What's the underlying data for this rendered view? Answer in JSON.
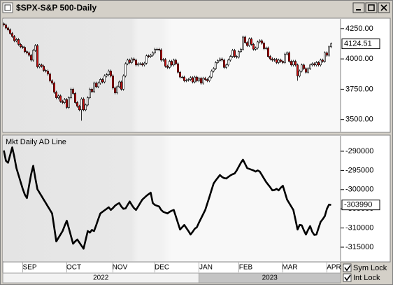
{
  "chart_data": [
    {
      "type": "candlestick",
      "title": "$SPX-S&P 500-Daily",
      "up_color": "#ffffff",
      "down_color": "#cc1111",
      "grid": false,
      "xlim": [
        -0.5,
        160.5
      ],
      "ylim": [
        3400,
        4330
      ],
      "yticks": [
        {
          "value": 4250,
          "label": "4250.00"
        },
        {
          "value": 4000,
          "label": "4000.00"
        },
        {
          "value": 3750,
          "label": "3750.00"
        },
        {
          "value": 3500,
          "label": "3500.00"
        }
      ],
      "open": [
        4290,
        4280,
        4255,
        4240,
        4210,
        4185,
        4150,
        4160,
        4120,
        4100,
        4095,
        4060,
        4050,
        4030,
        3990,
        4070,
        4110,
        3935,
        3950,
        3940,
        3905,
        3900,
        3875,
        3820,
        3800,
        3725,
        3680,
        3695,
        3650,
        3640,
        3665,
        3600,
        3680,
        3750,
        3715,
        3640,
        3610,
        3580,
        3670,
        3580,
        3620,
        3680,
        3750,
        3730,
        3800,
        3770,
        3800,
        3830,
        3810,
        3860,
        3870,
        3900,
        3860,
        3760,
        3720,
        3770,
        3810,
        3750,
        3860,
        3960,
        3990,
        3970,
        4000,
        3990,
        3950,
        3960,
        3960,
        3950,
        3965,
        4025,
        4020,
        4030,
        4050,
        4080,
        4080,
        4075,
        3990,
        3995,
        3940,
        3930,
        3980,
        3950,
        3990,
        3960,
        3890,
        3850,
        3850,
        3820,
        3825,
        3830,
        3845,
        3810,
        3850,
        3820,
        3840,
        3800,
        3840,
        3830,
        3820,
        3850,
        3900,
        3920,
        3970,
        3985,
        4000,
        3990,
        3930,
        3950,
        3990,
        4020,
        4070,
        4020,
        4015,
        4060,
        4080,
        4180,
        4135,
        4110,
        4165,
        4120,
        4080,
        4090,
        4140,
        4150,
        4130,
        4085,
        4090,
        4020,
        4000,
        3990,
        3995,
        3970,
        3990,
        3980,
        3970,
        4040,
        4050,
        3980,
        3950,
        3980,
        3950,
        3860,
        3900,
        3950,
        3920,
        3890,
        3920,
        3950,
        3960,
        3950,
        3970,
        3950,
        3990,
        3980,
        4050,
        4030,
        4100
      ],
      "high": [
        4302,
        4292,
        4267,
        4252,
        4222,
        4197,
        4172,
        4172,
        4132,
        4112,
        4107,
        4072,
        4062,
        4042,
        4082,
        4122,
        4122,
        3962,
        3962,
        3952,
        3917,
        3912,
        3887,
        3832,
        3812,
        3737,
        3707,
        3707,
        3662,
        3677,
        3677,
        3692,
        3762,
        3762,
        3727,
        3652,
        3622,
        3682,
        3682,
        3632,
        3692,
        3762,
        3762,
        3812,
        3812,
        3812,
        3842,
        3842,
        3872,
        3882,
        3912,
        3912,
        3872,
        3772,
        3782,
        3822,
        3822,
        3872,
        3972,
        4002,
        4002,
        4012,
        4012,
        4002,
        3972,
        3972,
        3972,
        3977,
        4037,
        4037,
        4042,
        4062,
        4092,
        4092,
        4092,
        4087,
        4007,
        4007,
        3952,
        3992,
        3992,
        4002,
        4002,
        3972,
        3902,
        3862,
        3862,
        3837,
        3842,
        3857,
        3857,
        3862,
        3862,
        3852,
        3852,
        3852,
        3852,
        3842,
        3862,
        3912,
        3932,
        3982,
        3997,
        4012,
        4012,
        4002,
        3962,
        4002,
        4032,
        4082,
        4082,
        4032,
        4072,
        4092,
        4192,
        4192,
        4147,
        4177,
        4177,
        4132,
        4102,
        4152,
        4162,
        4162,
        4142,
        4102,
        4102,
        4032,
        4012,
        4007,
        4007,
        4002,
        4002,
        3992,
        4052,
        4062,
        4062,
        3992,
        3992,
        3992,
        3962,
        3912,
        3962,
        3962,
        3932,
        3932,
        3962,
        3972,
        3972,
        3982,
        3982,
        4002,
        4002,
        4062,
        4062,
        4112,
        4136
      ],
      "low": [
        4268,
        4243,
        4228,
        4198,
        4173,
        4138,
        4138,
        4108,
        4088,
        4083,
        4048,
        4038,
        4018,
        3978,
        3978,
        4058,
        3923,
        3923,
        3928,
        3893,
        3888,
        3863,
        3808,
        3788,
        3713,
        3668,
        3668,
        3638,
        3628,
        3628,
        3588,
        3588,
        3668,
        3703,
        3628,
        3598,
        3568,
        3490,
        3568,
        3568,
        3608,
        3668,
        3718,
        3718,
        3758,
        3758,
        3788,
        3798,
        3798,
        3848,
        3858,
        3848,
        3748,
        3708,
        3708,
        3758,
        3738,
        3738,
        3848,
        3948,
        3958,
        3958,
        3978,
        3938,
        3938,
        3948,
        3938,
        3938,
        3953,
        4008,
        4008,
        4018,
        4038,
        4068,
        4063,
        3978,
        3978,
        3928,
        3918,
        3918,
        3938,
        3938,
        3948,
        3878,
        3838,
        3838,
        3808,
        3808,
        3813,
        3818,
        3798,
        3798,
        3808,
        3808,
        3788,
        3788,
        3818,
        3808,
        3808,
        3838,
        3888,
        3908,
        3958,
        3973,
        3978,
        3918,
        3918,
        3938,
        3978,
        4008,
        4008,
        4003,
        4003,
        4048,
        4068,
        4123,
        4098,
        4098,
        4108,
        4068,
        4068,
        4078,
        4128,
        4118,
        4073,
        4073,
        4008,
        3988,
        3978,
        3978,
        3958,
        3958,
        3968,
        3958,
        3958,
        4028,
        3968,
        3938,
        3938,
        3938,
        3820,
        3848,
        3888,
        3908,
        3878,
        3878,
        3908,
        3938,
        3938,
        3938,
        3938,
        3938,
        3968,
        3968,
        4018,
        4018,
        4088
      ],
      "close": [
        4280,
        4255,
        4240,
        4210,
        4185,
        4150,
        4160,
        4120,
        4100,
        4095,
        4060,
        4050,
        4030,
        3990,
        4070,
        4110,
        3935,
        3950,
        3940,
        3905,
        3900,
        3875,
        3820,
        3800,
        3725,
        3680,
        3695,
        3650,
        3640,
        3665,
        3600,
        3680,
        3750,
        3715,
        3640,
        3610,
        3580,
        3670,
        3580,
        3620,
        3680,
        3750,
        3730,
        3800,
        3770,
        3800,
        3830,
        3810,
        3860,
        3870,
        3900,
        3860,
        3760,
        3720,
        3770,
        3810,
        3750,
        3860,
        3960,
        3990,
        3970,
        4000,
        3990,
        3950,
        3960,
        3960,
        3950,
        3965,
        4025,
        4020,
        4030,
        4050,
        4080,
        4080,
        4075,
        3990,
        3995,
        3940,
        3930,
        3980,
        3950,
        3990,
        3960,
        3890,
        3850,
        3850,
        3820,
        3825,
        3830,
        3845,
        3810,
        3850,
        3820,
        3840,
        3800,
        3840,
        3830,
        3820,
        3850,
        3900,
        3920,
        3970,
        3985,
        4000,
        3990,
        3930,
        3950,
        3990,
        4020,
        4070,
        4020,
        4015,
        4060,
        4080,
        4180,
        4135,
        4110,
        4165,
        4120,
        4080,
        4090,
        4140,
        4150,
        4130,
        4085,
        4090,
        4020,
        4000,
        3990,
        3995,
        3970,
        3990,
        3980,
        3970,
        4040,
        4050,
        3980,
        3950,
        3980,
        3950,
        3860,
        3900,
        3950,
        3920,
        3890,
        3920,
        3950,
        3960,
        3950,
        3970,
        3950,
        3990,
        3980,
        4050,
        4030,
        4100,
        4124.51
      ]
    },
    {
      "type": "line",
      "title": "Mkt Daily AD Line",
      "color": "#000000",
      "grid": false,
      "xlim": [
        -0.5,
        160.5
      ],
      "ylim": [
        -318650,
        -285990
      ],
      "yticks": [
        -290000,
        -295000,
        -300000,
        -305000,
        -310000,
        -315000
      ],
      "xticks": [
        {
          "value": 9,
          "label": "SEP"
        },
        {
          "value": 30,
          "label": "OCT"
        },
        {
          "value": 52,
          "label": "NOV"
        },
        {
          "value": 72,
          "label": "DEC"
        },
        {
          "value": 93,
          "label": "JAN"
        },
        {
          "value": 112,
          "label": "FEB"
        },
        {
          "value": 133,
          "label": "MAR"
        },
        {
          "value": 154,
          "label": "APR"
        }
      ],
      "year_ticks": [
        {
          "value": -0.5,
          "label": "2022"
        },
        {
          "value": 93,
          "label": "2023"
        }
      ],
      "values": [
        -289800,
        -292500,
        -293000,
        -291000,
        -289000,
        -291500,
        -294400,
        -296200,
        -298000,
        -299800,
        -301300,
        -302200,
        -299000,
        -296000,
        -293800,
        -297000,
        -299900,
        -300800,
        -301700,
        -302600,
        -303500,
        -304400,
        -305300,
        -306200,
        -309800,
        -313500,
        -312600,
        -311700,
        -310800,
        -309400,
        -308100,
        -310100,
        -312100,
        -314100,
        -313500,
        -313000,
        -313800,
        -314600,
        -315400,
        -313100,
        -310800,
        -311200,
        -310500,
        -310800,
        -309300,
        -307700,
        -306200,
        -305800,
        -305400,
        -305000,
        -304600,
        -305300,
        -304800,
        -304200,
        -303800,
        -303500,
        -304400,
        -305000,
        -304900,
        -304000,
        -303100,
        -304000,
        -304800,
        -305300,
        -304400,
        -303500,
        -302600,
        -302100,
        -301600,
        -301200,
        -300800,
        -303500,
        -304000,
        -304200,
        -304400,
        -305300,
        -305800,
        -306000,
        -306200,
        -305800,
        -305500,
        -305300,
        -307000,
        -308700,
        -310400,
        -309800,
        -309200,
        -310000,
        -310800,
        -311700,
        -311000,
        -310200,
        -309800,
        -308600,
        -307500,
        -306400,
        -305300,
        -303600,
        -301900,
        -300100,
        -298400,
        -297600,
        -296900,
        -296200,
        -296700,
        -297000,
        -297100,
        -296700,
        -296300,
        -296000,
        -295800,
        -295000,
        -294000,
        -293000,
        -292200,
        -293300,
        -294400,
        -294600,
        -294800,
        -295000,
        -295300,
        -295000,
        -295300,
        -296200,
        -297100,
        -298000,
        -298700,
        -299400,
        -300200,
        -300100,
        -299800,
        -300200,
        -299500,
        -299000,
        -300800,
        -302600,
        -303500,
        -304400,
        -305300,
        -307800,
        -310400,
        -309200,
        -309300,
        -310600,
        -311700,
        -310500,
        -309500,
        -311000,
        -311800,
        -311700,
        -310000,
        -308400,
        -307700,
        -306900,
        -305000,
        -303900,
        -303990
      ]
    }
  ],
  "controls": {
    "sym_lock": "Sym Lock",
    "int_lock": "Int Lock"
  }
}
